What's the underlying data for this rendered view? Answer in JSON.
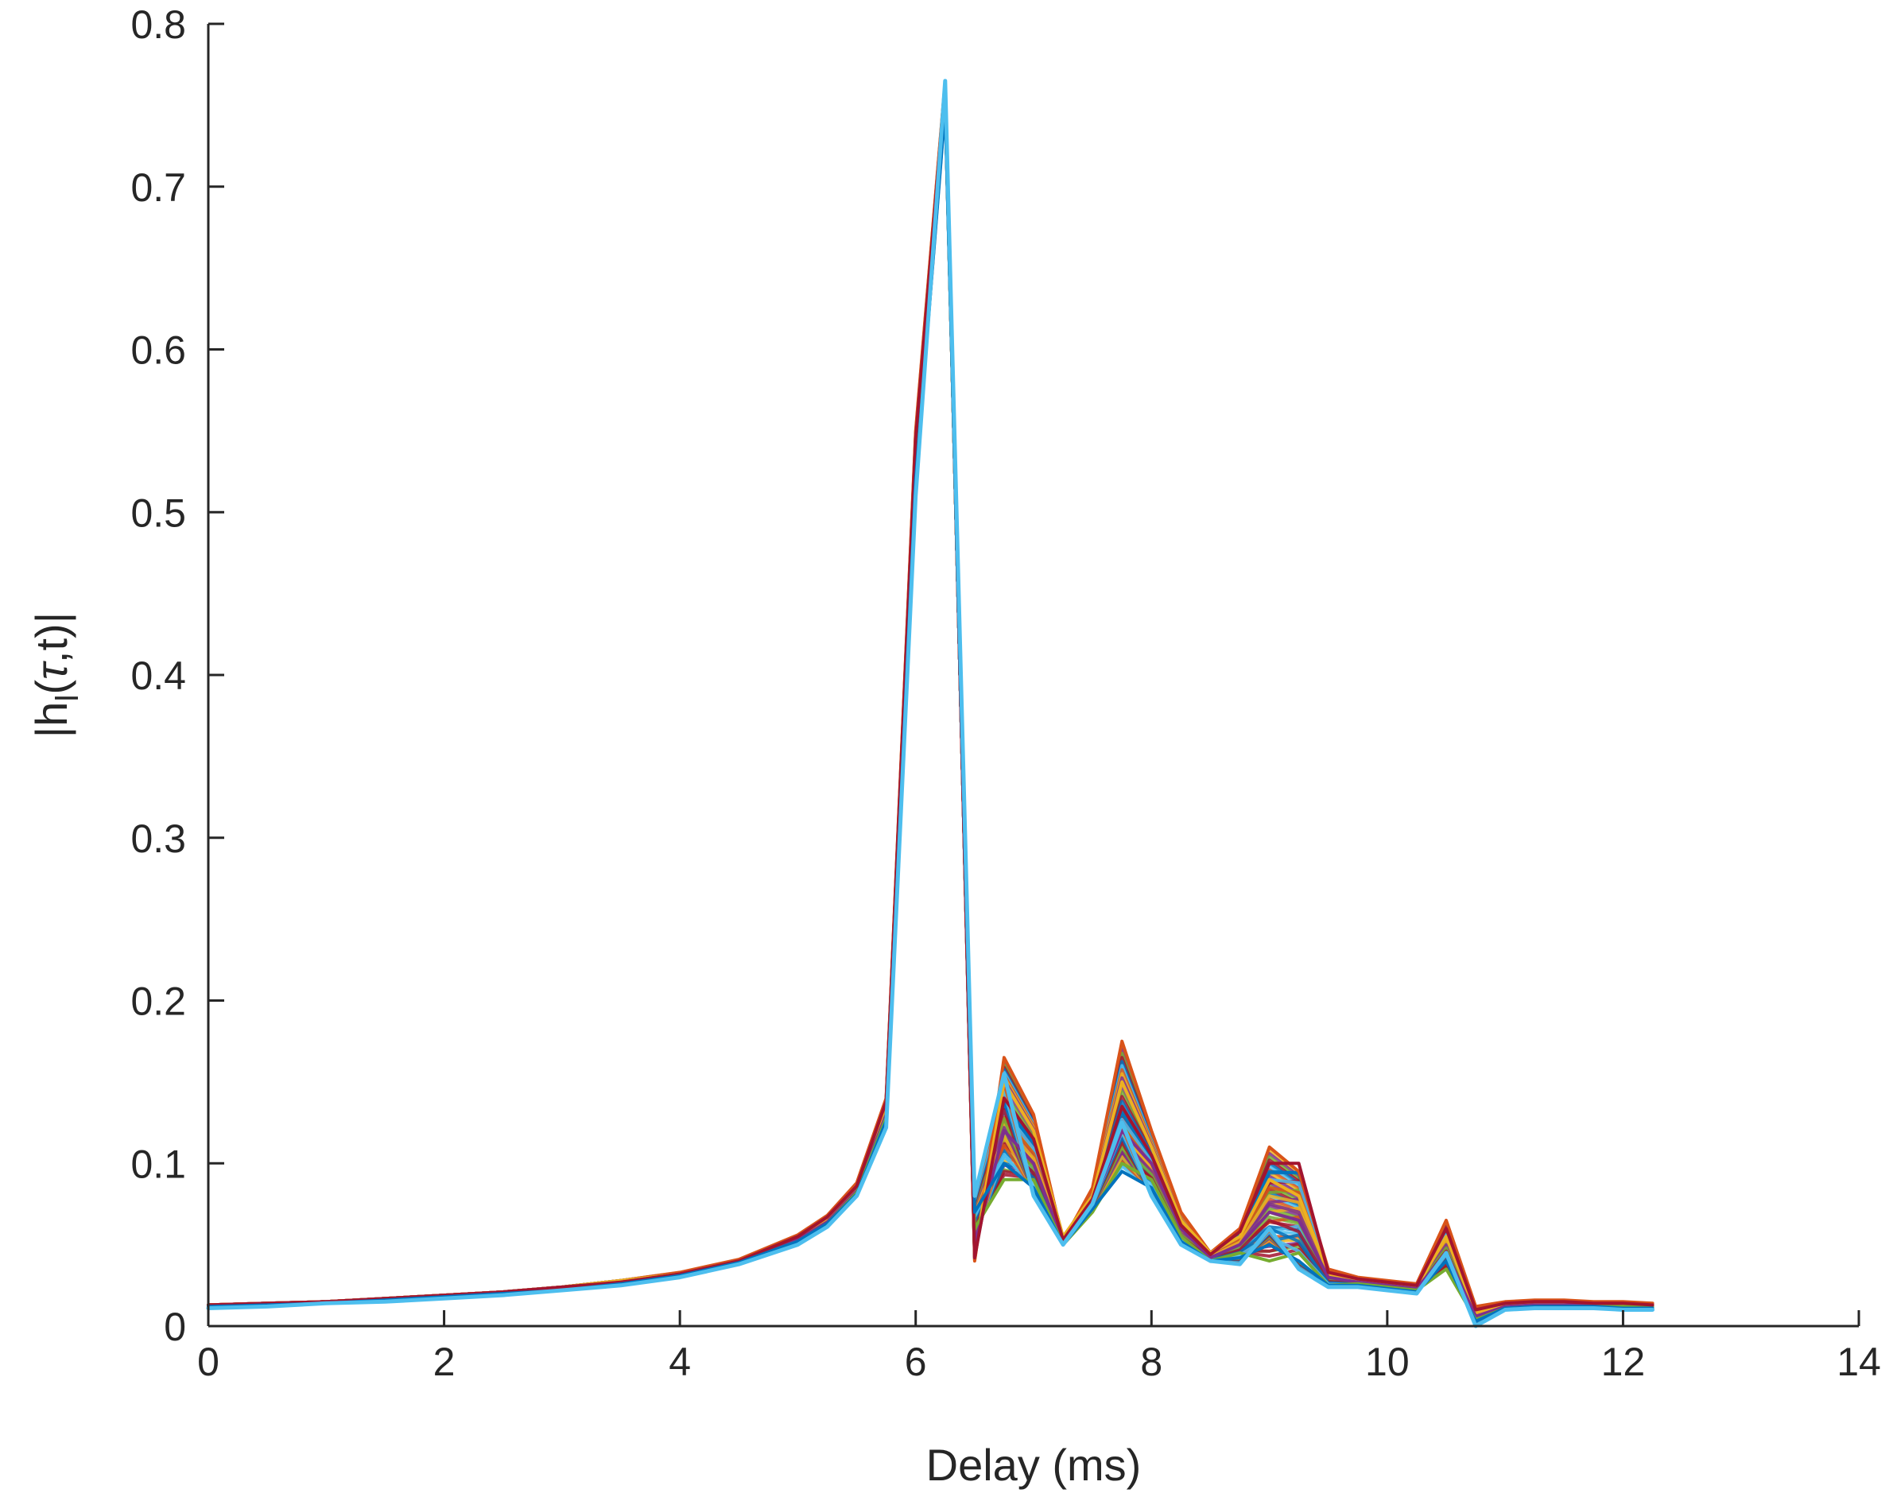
{
  "chart_data": {
    "type": "line",
    "title": "",
    "xlabel": "Delay (ms)",
    "ylabel_parts": {
      "open": "|h",
      "sub": "l",
      "mid": "(",
      "greek": "τ",
      "close": ",t)|"
    },
    "xlim": [
      0,
      14
    ],
    "ylim": [
      0,
      0.8
    ],
    "x_ticks": [
      0,
      2,
      4,
      6,
      8,
      10,
      12,
      14
    ],
    "x_tick_labels": [
      "0",
      "2",
      "4",
      "6",
      "8",
      "10",
      "12",
      "14"
    ],
    "y_ticks": [
      0,
      0.1,
      0.2,
      0.3,
      0.4,
      0.5,
      0.6,
      0.7,
      0.8
    ],
    "y_tick_labels": [
      "0",
      "0.1",
      "0.2",
      "0.3",
      "0.4",
      "0.5",
      "0.6",
      "0.7",
      "0.8"
    ],
    "grid": false,
    "legend": "none",
    "x": [
      0,
      0.5,
      1,
      1.5,
      2,
      2.5,
      3,
      3.5,
      4,
      4.5,
      5,
      5.25,
      5.5,
      5.75,
      6,
      6.25,
      6.5,
      6.75,
      7,
      7.25,
      7.5,
      7.75,
      8,
      8.25,
      8.5,
      8.75,
      9,
      9.25,
      9.5,
      9.75,
      10,
      10.25,
      10.5,
      10.75,
      11,
      11.25,
      11.5,
      11.75,
      12,
      12.25
    ],
    "series": [
      {
        "color": "#d95319",
        "values": [
          0.013,
          0.014,
          0.015,
          0.017,
          0.019,
          0.021,
          0.024,
          0.028,
          0.033,
          0.041,
          0.056,
          0.068,
          0.088,
          0.14,
          0.55,
          0.765,
          0.04,
          0.165,
          0.13,
          0.052,
          0.085,
          0.175,
          0.12,
          0.07,
          0.045,
          0.06,
          0.11,
          0.095,
          0.035,
          0.03,
          0.028,
          0.026,
          0.065,
          0.012,
          0.015,
          0.016,
          0.016,
          0.015,
          0.015,
          0.014
        ]
      },
      {
        "color": "#edb120",
        "values": [
          0.013,
          0.014,
          0.015,
          0.017,
          0.019,
          0.021,
          0.024,
          0.028,
          0.032,
          0.04,
          0.054,
          0.066,
          0.085,
          0.135,
          0.54,
          0.76,
          0.045,
          0.15,
          0.12,
          0.055,
          0.08,
          0.15,
          0.11,
          0.065,
          0.045,
          0.055,
          0.09,
          0.08,
          0.032,
          0.028,
          0.026,
          0.024,
          0.055,
          0.008,
          0.013,
          0.014,
          0.014,
          0.013,
          0.013,
          0.013
        ]
      },
      {
        "color": "#7e2f8e",
        "values": [
          0.012,
          0.013,
          0.015,
          0.016,
          0.018,
          0.02,
          0.023,
          0.027,
          0.032,
          0.04,
          0.053,
          0.064,
          0.083,
          0.13,
          0.53,
          0.755,
          0.05,
          0.12,
          0.1,
          0.05,
          0.075,
          0.12,
          0.1,
          0.06,
          0.042,
          0.05,
          0.07,
          0.065,
          0.03,
          0.027,
          0.025,
          0.023,
          0.045,
          0.006,
          0.012,
          0.013,
          0.013,
          0.013,
          0.012,
          0.012
        ]
      },
      {
        "color": "#77ac30",
        "values": [
          0.012,
          0.013,
          0.014,
          0.016,
          0.018,
          0.02,
          0.023,
          0.026,
          0.031,
          0.039,
          0.052,
          0.063,
          0.082,
          0.128,
          0.525,
          0.75,
          0.06,
          0.09,
          0.09,
          0.05,
          0.07,
          0.1,
          0.09,
          0.055,
          0.04,
          0.045,
          0.04,
          0.045,
          0.025,
          0.026,
          0.024,
          0.022,
          0.035,
          0.004,
          0.011,
          0.012,
          0.012,
          0.012,
          0.012,
          0.012
        ]
      },
      {
        "color": "#a2142f",
        "values": [
          0.013,
          0.014,
          0.015,
          0.017,
          0.019,
          0.021,
          0.024,
          0.027,
          0.032,
          0.04,
          0.055,
          0.067,
          0.086,
          0.138,
          0.545,
          0.762,
          0.042,
          0.14,
          0.115,
          0.053,
          0.078,
          0.135,
          0.105,
          0.062,
          0.044,
          0.058,
          0.1,
          0.1,
          0.033,
          0.029,
          0.027,
          0.025,
          0.06,
          0.01,
          0.014,
          0.015,
          0.015,
          0.014,
          0.014,
          0.013
        ]
      },
      {
        "color": "#0072bd",
        "values": [
          0.012,
          0.013,
          0.014,
          0.016,
          0.018,
          0.02,
          0.022,
          0.026,
          0.031,
          0.039,
          0.052,
          0.063,
          0.081,
          0.126,
          0.52,
          0.748,
          0.07,
          0.1,
          0.085,
          0.05,
          0.072,
          0.095,
          0.085,
          0.052,
          0.04,
          0.042,
          0.05,
          0.04,
          0.025,
          0.025,
          0.023,
          0.021,
          0.04,
          0.003,
          0.011,
          0.012,
          0.012,
          0.012,
          0.011,
          0.011
        ]
      },
      {
        "color": "#4dbeee",
        "values": [
          0.011,
          0.012,
          0.014,
          0.015,
          0.017,
          0.019,
          0.022,
          0.025,
          0.03,
          0.038,
          0.05,
          0.061,
          0.08,
          0.122,
          0.51,
          0.765,
          0.08,
          0.155,
          0.08,
          0.05,
          0.075,
          0.125,
          0.08,
          0.05,
          0.04,
          0.038,
          0.06,
          0.035,
          0.024,
          0.024,
          0.022,
          0.02,
          0.045,
          0.0,
          0.01,
          0.011,
          0.011,
          0.011,
          0.01,
          0.01
        ]
      }
    ]
  }
}
